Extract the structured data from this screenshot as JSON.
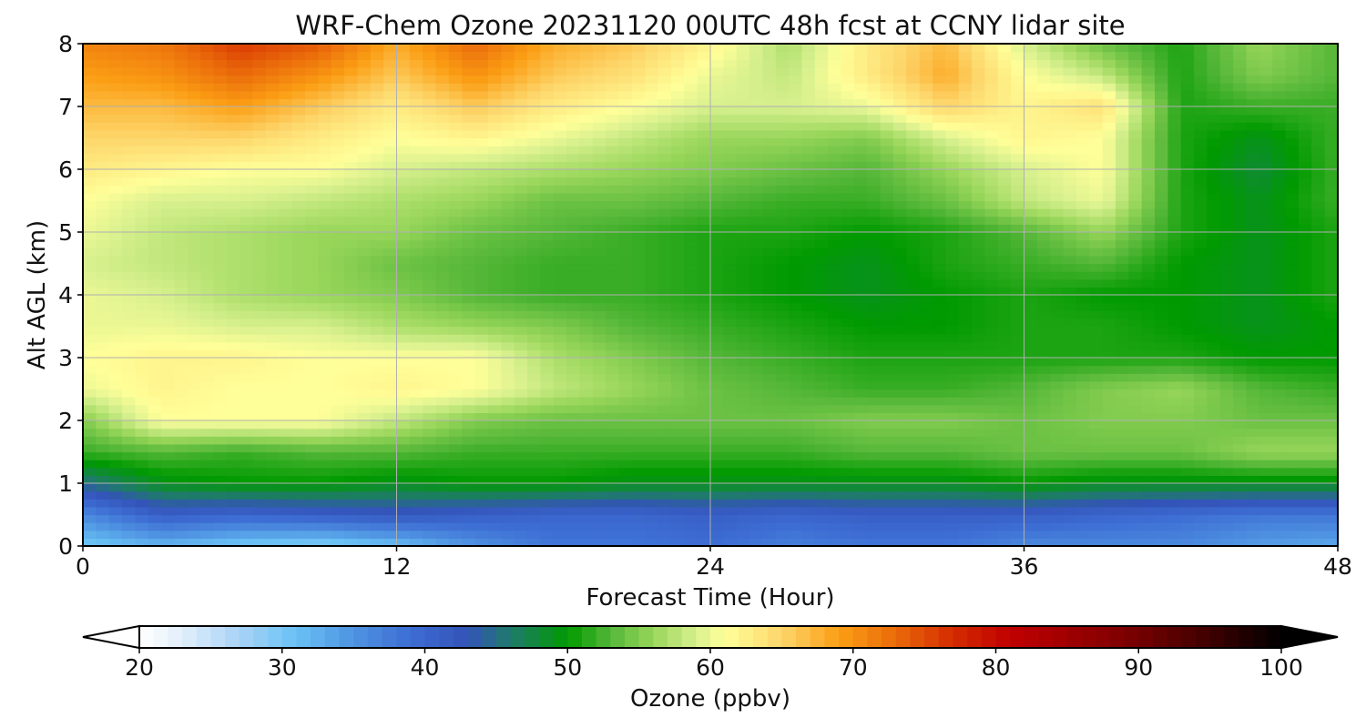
{
  "chart_data": [
    {
      "type": "heatmap",
      "title": "WRF-Chem Ozone  20231120 00UTC 48h fcst at CCNY lidar site",
      "xlabel": "Forecast Time (Hour)",
      "ylabel": "Alt AGL (km)",
      "xlim": [
        0,
        48
      ],
      "ylim": [
        0,
        8
      ],
      "x_ticks": [
        "0",
        "12",
        "24",
        "36",
        "48"
      ],
      "y_ticks": [
        "0",
        "1",
        "2",
        "3",
        "4",
        "5",
        "6",
        "7",
        "8"
      ],
      "grid": true,
      "value_units": "ppbv",
      "x": [
        0,
        3,
        6,
        9,
        12,
        15,
        18,
        21,
        24,
        27,
        30,
        33,
        36,
        39,
        42,
        45,
        48
      ],
      "y": [
        0,
        0.5,
        1,
        1.5,
        2,
        2.5,
        3,
        3.5,
        4,
        4.5,
        5,
        5.5,
        6,
        6.5,
        7,
        7.5,
        8
      ],
      "z": [
        [
          30,
          32,
          30,
          29,
          31,
          35,
          38,
          38,
          39,
          37,
          38,
          38,
          36,
          36,
          36,
          34,
          33
        ],
        [
          36,
          41,
          40,
          41,
          42,
          41,
          40,
          40,
          41,
          40,
          41,
          41,
          41,
          40,
          39,
          38,
          38
        ],
        [
          45,
          49,
          50,
          50,
          49,
          50,
          50,
          49,
          49,
          49,
          49,
          49,
          50,
          49,
          49,
          49,
          49
        ],
        [
          52,
          53,
          52,
          53,
          53,
          52,
          52,
          52,
          52,
          52,
          53,
          53,
          54,
          54,
          54,
          56,
          56
        ],
        [
          55,
          61,
          61,
          61,
          58,
          55,
          54,
          54,
          54,
          54,
          55,
          55,
          54,
          55,
          55,
          54,
          54
        ],
        [
          60,
          62,
          61,
          61,
          62,
          61,
          58,
          56,
          54,
          53,
          52,
          52,
          53,
          55,
          56,
          53,
          52
        ],
        [
          61,
          62,
          62,
          61,
          61,
          61,
          57,
          55,
          53,
          52,
          51,
          51,
          51,
          51,
          51,
          50,
          50
        ],
        [
          60,
          60,
          59,
          59,
          57,
          56,
          55,
          53,
          52,
          51,
          50,
          50,
          51,
          51,
          50,
          49,
          50
        ],
        [
          60,
          59,
          57,
          56,
          55,
          53,
          52,
          52,
          51,
          50,
          49,
          50,
          51,
          50,
          50,
          49,
          51
        ],
        [
          59,
          58,
          57,
          56,
          54,
          53,
          52,
          52,
          51,
          50,
          49,
          51,
          52,
          53,
          50,
          49,
          51
        ],
        [
          60,
          58,
          57,
          56,
          56,
          54,
          53,
          52,
          51,
          51,
          50,
          51,
          53,
          56,
          51,
          49,
          51
        ],
        [
          61,
          59,
          59,
          58,
          57,
          56,
          54,
          54,
          53,
          52,
          52,
          54,
          58,
          60,
          51,
          49,
          52
        ],
        [
          63,
          62,
          61,
          61,
          59,
          58,
          57,
          56,
          55,
          54,
          53,
          56,
          59,
          61,
          51,
          48,
          52
        ],
        [
          65,
          65,
          65,
          63,
          61,
          62,
          60,
          58,
          56,
          56,
          55,
          59,
          62,
          61,
          51,
          49,
          52
        ],
        [
          67,
          67,
          69,
          66,
          63,
          66,
          63,
          61,
          59,
          59,
          60,
          65,
          62,
          64,
          51,
          52,
          52
        ],
        [
          69,
          70,
          73,
          70,
          66,
          70,
          66,
          64,
          60,
          58,
          63,
          68,
          61,
          58,
          51,
          55,
          53
        ],
        [
          71,
          72,
          76,
          74,
          68,
          73,
          68,
          66,
          62,
          57,
          63,
          67,
          59,
          54,
          51,
          56,
          53
        ]
      ],
      "colorbar": {
        "label": "Ozone  (ppbv)",
        "min": 20,
        "max": 100,
        "step": 1,
        "extend": "both",
        "ticks": [
          "20",
          "30",
          "40",
          "50",
          "60",
          "70",
          "80",
          "90",
          "100"
        ],
        "stops": [
          {
            "v": 20,
            "c": "#ffffff"
          },
          {
            "v": 23,
            "c": "#e1eefa"
          },
          {
            "v": 27,
            "c": "#a9d3f6"
          },
          {
            "v": 31,
            "c": "#68c1f4"
          },
          {
            "v": 35,
            "c": "#4f93e2"
          },
          {
            "v": 39,
            "c": "#3d6dd3"
          },
          {
            "v": 43,
            "c": "#3353b8"
          },
          {
            "v": 46,
            "c": "#1f7a6c"
          },
          {
            "v": 50,
            "c": "#009a00"
          },
          {
            "v": 53,
            "c": "#55b738"
          },
          {
            "v": 56,
            "c": "#98d65a"
          },
          {
            "v": 59,
            "c": "#d7f08e"
          },
          {
            "v": 61,
            "c": "#ffff99"
          },
          {
            "v": 65,
            "c": "#fdd66b"
          },
          {
            "v": 69,
            "c": "#fb9e14"
          },
          {
            "v": 73,
            "c": "#ea6a0a"
          },
          {
            "v": 77,
            "c": "#d42b00"
          },
          {
            "v": 81,
            "c": "#c00000"
          },
          {
            "v": 88,
            "c": "#870000"
          },
          {
            "v": 94,
            "c": "#4a0000"
          },
          {
            "v": 100,
            "c": "#000000"
          }
        ]
      }
    }
  ]
}
